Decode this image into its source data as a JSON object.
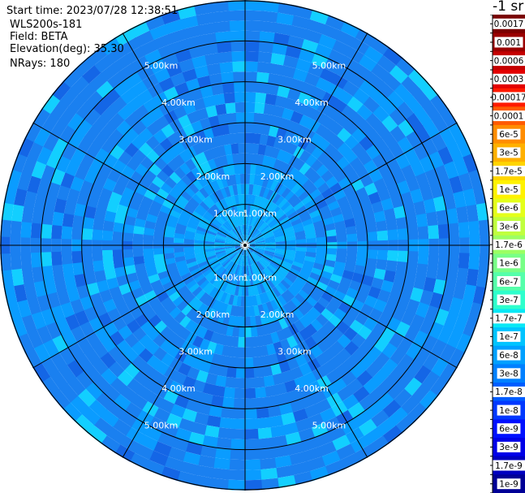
{
  "info": {
    "start_time": "Start time: 2023/07/28 12:38:51",
    "station": "WLS200s-181",
    "field": "Field: BETA",
    "elevation": "Elevation(deg): 35.30",
    "nrays": "NRays: 180"
  },
  "chart_data": {
    "type": "heatmap",
    "subtype": "polar-ppi",
    "field": "BETA",
    "elevation_deg": 35.3,
    "nrays": 180,
    "range_rings_km": [
      1.0,
      2.0,
      3.0,
      4.0,
      5.0
    ],
    "ring_labels": [
      "1.00km",
      "2.00km",
      "3.00km",
      "4.00km",
      "5.00km"
    ],
    "max_range_km": 6.0,
    "azimuth_spokes_deg": [
      0,
      30,
      60,
      90,
      120,
      150,
      180,
      210,
      240,
      270,
      300,
      330
    ],
    "colorbar": {
      "unit_label": "-1 sr",
      "scale": "log",
      "ticks": [
        "0.0017",
        "0.001",
        "0.0006",
        "0.0003",
        "0.00017",
        "0.0001",
        "6e-5",
        "3e-5",
        "1.7e-5",
        "1e-5",
        "6e-6",
        "3e-6",
        "1.7e-6",
        "1e-6",
        "6e-7",
        "3e-7",
        "1.7e-7",
        "1e-7",
        "6e-8",
        "3e-8",
        "1.7e-8",
        "1e-8",
        "6e-9",
        "3e-9",
        "1.7e-9",
        "1e-9"
      ],
      "colors": [
        "#7a0000",
        "#9a0000",
        "#c40000",
        "#e30000",
        "#ff1a00",
        "#ff5a00",
        "#ff8c00",
        "#ffb000",
        "#ffd500",
        "#fff200",
        "#e4ff1a",
        "#c0ff3e",
        "#9cff62",
        "#78ff86",
        "#55ffaa",
        "#2effcc",
        "#0ae8f5",
        "#00c4ff",
        "#00a0ff",
        "#0080ff",
        "#005cff",
        "#0038ff",
        "#0010ff",
        "#0000e8",
        "#0000bf",
        "#000096"
      ]
    },
    "approx_values": [
      {
        "range_km": "0-1.0",
        "beta": "≈1e-7"
      },
      {
        "range_km": "1.0-2.0",
        "beta": "≈6e-8"
      },
      {
        "range_km": "2.0-6.0",
        "beta": "≈3e-8"
      }
    ]
  }
}
